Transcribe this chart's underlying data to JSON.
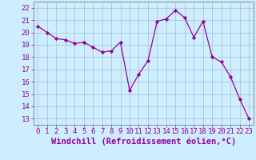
{
  "x": [
    0,
    1,
    2,
    3,
    4,
    5,
    6,
    7,
    8,
    9,
    10,
    11,
    12,
    13,
    14,
    15,
    16,
    17,
    18,
    19,
    20,
    21,
    22,
    23
  ],
  "y": [
    20.5,
    20.0,
    19.5,
    19.4,
    19.1,
    19.2,
    18.8,
    18.4,
    18.5,
    19.2,
    15.3,
    16.6,
    17.7,
    20.9,
    21.1,
    21.8,
    21.2,
    19.6,
    20.9,
    18.0,
    17.6,
    16.4,
    14.6,
    13.0
  ],
  "line_color": "#990099",
  "marker": "D",
  "marker_size": 2.2,
  "bg_color": "#cceeff",
  "grid_color": "#aabbcc",
  "xlabel": "Windchill (Refroidissement éolien,°C)",
  "xlabel_color": "#990099",
  "ylabel_ticks": [
    13,
    14,
    15,
    16,
    17,
    18,
    19,
    20,
    21,
    22
  ],
  "xtick_labels": [
    "0",
    "1",
    "2",
    "3",
    "4",
    "5",
    "6",
    "7",
    "8",
    "9",
    "10",
    "11",
    "12",
    "13",
    "14",
    "15",
    "16",
    "17",
    "18",
    "19",
    "20",
    "21",
    "22",
    "23"
  ],
  "ylim": [
    12.5,
    22.5
  ],
  "xlim": [
    -0.5,
    23.5
  ],
  "tick_color": "#990099",
  "tick_fontsize": 6.5,
  "xlabel_fontsize": 7.5,
  "spine_color": "#888899"
}
